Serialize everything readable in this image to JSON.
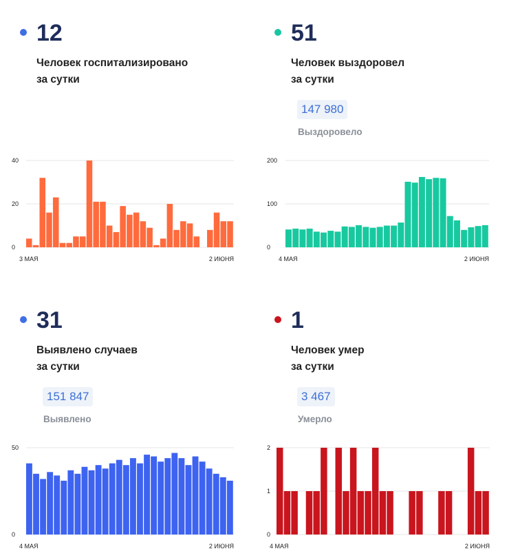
{
  "panels": [
    {
      "id": "hospitalized",
      "value": "12",
      "desc_line1": "Человек госпитализировано",
      "desc_line2": "за сутки",
      "dot_color": "#3f6fe6",
      "chart_color": "#ff6b3d"
    },
    {
      "id": "recovered",
      "value": "51",
      "desc_line1": "Человек выздоровел",
      "desc_line2": "за сутки",
      "total": "147 980",
      "total_label": "Выздоровело",
      "dot_color": "#19c6a1",
      "chart_color": "#18c9a0"
    },
    {
      "id": "cases",
      "value": "31",
      "desc_line1": "Выявлено случаев",
      "desc_line2": "за сутки",
      "total": "151 847",
      "total_label": "Выявлено",
      "dot_color": "#3f6fe6",
      "chart_color": "#3d63f0"
    },
    {
      "id": "deaths",
      "value": "1",
      "desc_line1": "Человек умер",
      "desc_line2": "за сутки",
      "total": "3 467",
      "total_label": "Умерло",
      "dot_color": "#c9151e",
      "chart_color": "#c9151e"
    }
  ],
  "chart_data": [
    {
      "type": "bar",
      "x_start_label": "3 МАЯ",
      "x_end_label": "2 ИЮНЯ",
      "yticks": [
        0,
        20,
        40
      ],
      "ylim": [
        0,
        40
      ],
      "values": [
        4,
        1,
        32,
        16,
        23,
        2,
        2,
        5,
        5,
        40,
        21,
        21,
        10,
        7,
        19,
        15,
        16,
        12,
        9,
        1,
        4,
        20,
        8,
        12,
        11,
        5,
        0,
        8,
        16,
        12,
        12
      ],
      "color": "#ff6b3d"
    },
    {
      "type": "bar",
      "x_start_label": "4 МАЯ",
      "x_end_label": "2 ИЮНЯ",
      "yticks": [
        0,
        100,
        200
      ],
      "ylim": [
        0,
        200
      ],
      "values": [
        41,
        43,
        41,
        43,
        36,
        34,
        38,
        36,
        48,
        47,
        51,
        47,
        45,
        47,
        50,
        50,
        57,
        151,
        149,
        162,
        157,
        160,
        159,
        72,
        62,
        40,
        46,
        49,
        51
      ],
      "color": "#18c9a0"
    },
    {
      "type": "bar",
      "x_start_label": "4 МАЯ",
      "x_end_label": "2 ИЮНЯ",
      "yticks": [
        0,
        50
      ],
      "ylim": [
        0,
        50
      ],
      "values": [
        41,
        35,
        32,
        36,
        34,
        31,
        37,
        35,
        39,
        37,
        40,
        38,
        41,
        43,
        40,
        44,
        41,
        46,
        45,
        42,
        44,
        47,
        44,
        40,
        45,
        42,
        38,
        35,
        33,
        31
      ],
      "color": "#3d63f0"
    },
    {
      "type": "bar",
      "x_start_label": "4 МАЯ",
      "x_end_label": "2 ИЮНЯ",
      "yticks": [
        0,
        1,
        2
      ],
      "ylim": [
        0,
        2
      ],
      "values": [
        2,
        1,
        1,
        0,
        1,
        1,
        2,
        0,
        2,
        1,
        2,
        1,
        1,
        2,
        1,
        1,
        0,
        0,
        1,
        1,
        0,
        0,
        1,
        1,
        0,
        0,
        2,
        1,
        1
      ],
      "color": "#c9151e"
    }
  ]
}
